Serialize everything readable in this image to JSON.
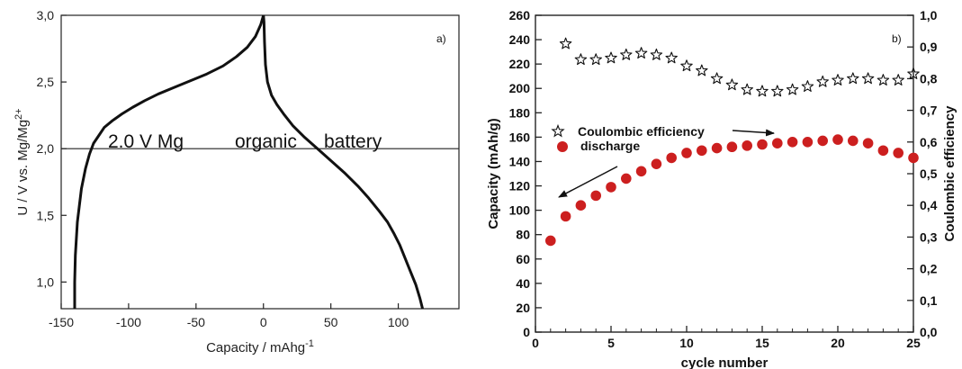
{
  "chart_data": [
    {
      "type": "line",
      "panel_label": "a)",
      "xlabel": "Capacity / mAhg",
      "xlabel_sup": "-1",
      "ylabel": "U / V vs. Mg/Mg",
      "ylabel_sup": "2+",
      "xlim": [
        -150,
        145
      ],
      "ylim": [
        0.8,
        3.0
      ],
      "x_ticks": [
        -150,
        -100,
        -50,
        0,
        50,
        100
      ],
      "x_tick_labels": [
        "-150",
        "-100",
        "-50",
        "0",
        "50",
        "100"
      ],
      "y_ticks": [
        1.0,
        1.5,
        2.0,
        2.5,
        3.0
      ],
      "y_tick_labels": [
        "1,0",
        "1,5",
        "2,0",
        "2,5",
        "3,0"
      ],
      "reference_line_y": 2.0,
      "annotation_words": [
        "2.0 V Mg",
        "organic",
        "battery"
      ],
      "series": [
        {
          "x": [
            -140,
            -140,
            -139.5,
            -138,
            -135,
            -132,
            -129,
            -126,
            -122,
            -118,
            -112,
            -105,
            -97,
            -88,
            -78,
            -66,
            -54,
            -42,
            -30,
            -20,
            -12,
            -6,
            -2,
            0
          ],
          "y": [
            0.8,
            1.0,
            1.2,
            1.45,
            1.7,
            1.85,
            1.96,
            2.04,
            2.1,
            2.16,
            2.21,
            2.26,
            2.31,
            2.36,
            2.41,
            2.46,
            2.51,
            2.56,
            2.62,
            2.69,
            2.76,
            2.84,
            2.93,
            3.0
          ]
        },
        {
          "x": [
            0,
            0.4,
            0.8,
            1.5,
            3,
            6,
            10,
            15,
            22,
            30,
            40,
            50,
            60,
            70,
            78,
            86,
            92,
            97,
            101,
            105,
            109,
            113,
            116,
            118
          ],
          "y": [
            3.0,
            2.95,
            2.8,
            2.63,
            2.5,
            2.4,
            2.33,
            2.26,
            2.17,
            2.09,
            2.0,
            1.91,
            1.82,
            1.72,
            1.63,
            1.53,
            1.45,
            1.36,
            1.28,
            1.18,
            1.08,
            0.98,
            0.88,
            0.8
          ]
        }
      ]
    },
    {
      "type": "scatter",
      "panel_label": "b)",
      "xlabel": "cycle number",
      "ylabel": "Capacity (mAh/g)",
      "y2label": "Coulombic efficiency",
      "xlim": [
        0,
        25
      ],
      "ylim": [
        0,
        260
      ],
      "y2lim": [
        0,
        1.0
      ],
      "x_ticks": [
        0,
        5,
        10,
        15,
        20,
        25
      ],
      "x_tick_labels": [
        "0",
        "5",
        "10",
        "15",
        "20",
        "25"
      ],
      "y_ticks": [
        0,
        20,
        40,
        60,
        80,
        100,
        120,
        140,
        160,
        180,
        200,
        220,
        240,
        260
      ],
      "y_tick_labels": [
        "0",
        "20",
        "40",
        "60",
        "80",
        "100",
        "120",
        "140",
        "160",
        "180",
        "200",
        "220",
        "240",
        "260"
      ],
      "y2_ticks": [
        0,
        0.1,
        0.2,
        0.3,
        0.4,
        0.5,
        0.6,
        0.7,
        0.8,
        0.9,
        1.0
      ],
      "y2_tick_labels": [
        "0,0",
        "0,1",
        "0,2",
        "0,3",
        "0,4",
        "0,5",
        "0,6",
        "0,7",
        "0,8",
        "0,9",
        "1,0"
      ],
      "series": [
        {
          "name": "discharge",
          "axis": "left",
          "marker": "circle",
          "color": "#cc1f1f",
          "x": [
            1,
            2,
            3,
            4,
            5,
            6,
            7,
            8,
            9,
            10,
            11,
            12,
            13,
            14,
            15,
            16,
            17,
            18,
            19,
            20,
            21,
            22,
            23,
            24,
            25
          ],
          "y": [
            75,
            95,
            104,
            112,
            119,
            126,
            132,
            138,
            143,
            147,
            149,
            151,
            152,
            153,
            154,
            155,
            156,
            156,
            157,
            158,
            157,
            155,
            149,
            147,
            143
          ]
        },
        {
          "name": "Coulombic efficiency",
          "axis": "right",
          "marker": "star-open",
          "color": "#111111",
          "x": [
            2,
            3,
            4,
            5,
            6,
            7,
            8,
            9,
            10,
            11,
            12,
            13,
            14,
            15,
            16,
            17,
            18,
            19,
            20,
            21,
            22,
            23,
            24,
            25
          ],
          "y": [
            0.91,
            0.86,
            0.86,
            0.865,
            0.875,
            0.88,
            0.875,
            0.865,
            0.84,
            0.825,
            0.8,
            0.78,
            0.765,
            0.76,
            0.76,
            0.765,
            0.775,
            0.79,
            0.795,
            0.8,
            0.8,
            0.795,
            0.795,
            0.815
          ]
        }
      ]
    }
  ]
}
